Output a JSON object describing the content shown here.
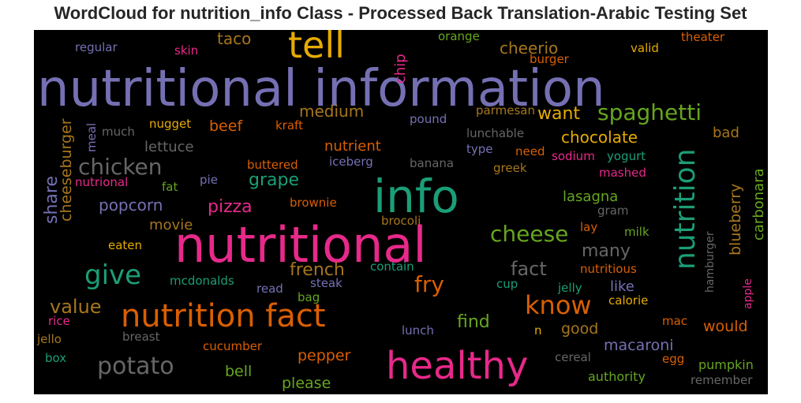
{
  "chart_data": {
    "type": "wordcloud",
    "title": "WordCloud for nutrition_info Class - Processed Back Translation-Arabic Testing Set",
    "background": "#000000",
    "words": [
      {
        "text": "nutritional information",
        "color": "#7570b3",
        "size": 64
      },
      {
        "text": "nutritional",
        "color": "#e7298a",
        "size": 62
      },
      {
        "text": "info",
        "color": "#1b9e77",
        "size": 58
      },
      {
        "text": "healthy",
        "color": "#e7298a",
        "size": 48
      },
      {
        "text": "tell",
        "color": "#e6ab02",
        "size": 46
      },
      {
        "text": "nutrition fact",
        "color": "#d95f02",
        "size": 40
      },
      {
        "text": "nutrition",
        "color": "#1b9e77",
        "size": 36
      },
      {
        "text": "give",
        "color": "#1b9e77",
        "size": 34
      },
      {
        "text": "know",
        "color": "#d95f02",
        "size": 32
      },
      {
        "text": "potato",
        "color": "#666666",
        "size": 30
      },
      {
        "text": "cheese",
        "color": "#66a61e",
        "size": 28
      },
      {
        "text": "fry",
        "color": "#d95f02",
        "size": 28
      },
      {
        "text": "spaghetti",
        "color": "#66a61e",
        "size": 28
      },
      {
        "text": "chicken",
        "color": "#666666",
        "size": 28
      },
      {
        "text": "value",
        "color": "#a6761d",
        "size": 24
      },
      {
        "text": "fact",
        "color": "#666666",
        "size": 24
      },
      {
        "text": "share",
        "color": "#7570b3",
        "size": 22
      },
      {
        "text": "grape",
        "color": "#1b9e77",
        "size": 22
      },
      {
        "text": "pizza",
        "color": "#e7298a",
        "size": 22
      },
      {
        "text": "find",
        "color": "#66a61e",
        "size": 22
      },
      {
        "text": "many",
        "color": "#666666",
        "size": 22
      },
      {
        "text": "french",
        "color": "#a6761d",
        "size": 22
      },
      {
        "text": "want",
        "color": "#e6ab02",
        "size": 22
      },
      {
        "text": "cheerio",
        "color": "#a6761d",
        "size": 20
      },
      {
        "text": "taco",
        "color": "#a6761d",
        "size": 20
      },
      {
        "text": "popcorn",
        "color": "#7570b3",
        "size": 20
      },
      {
        "text": "chocolate",
        "color": "#e6ab02",
        "size": 20
      },
      {
        "text": "medium",
        "color": "#a6761d",
        "size": 20
      },
      {
        "text": "beef",
        "color": "#d95f02",
        "size": 19
      },
      {
        "text": "macaroni",
        "color": "#7570b3",
        "size": 19
      },
      {
        "text": "bell",
        "color": "#66a61e",
        "size": 19
      },
      {
        "text": "pepper",
        "color": "#d95f02",
        "size": 19
      },
      {
        "text": "please",
        "color": "#66a61e",
        "size": 19
      },
      {
        "text": "would",
        "color": "#d95f02",
        "size": 19
      },
      {
        "text": "good",
        "color": "#a6761d",
        "size": 19
      },
      {
        "text": "lasagna",
        "color": "#66a61e",
        "size": 18
      },
      {
        "text": "like",
        "color": "#7570b3",
        "size": 18
      },
      {
        "text": "movie",
        "color": "#a6761d",
        "size": 18
      },
      {
        "text": "nutrient",
        "color": "#d95f02",
        "size": 18
      },
      {
        "text": "lettuce",
        "color": "#666666",
        "size": 18
      },
      {
        "text": "bad",
        "color": "#a6761d",
        "size": 18
      },
      {
        "text": "pumpkin",
        "color": "#66a61e",
        "size": 16
      },
      {
        "text": "authority",
        "color": "#66a61e",
        "size": 16
      },
      {
        "text": "cheeseburger",
        "color": "#a6761d",
        "size": 19
      },
      {
        "text": "chip",
        "color": "#e7298a",
        "size": 18
      },
      {
        "text": "blueberry",
        "color": "#a6761d",
        "size": 19
      },
      {
        "text": "carbonara",
        "color": "#66a61e",
        "size": 18
      },
      {
        "text": "orange",
        "color": "#66a61e",
        "size": 15
      },
      {
        "text": "theater",
        "color": "#d95f02",
        "size": 15
      },
      {
        "text": "regular",
        "color": "#7570b3",
        "size": 15
      },
      {
        "text": "skin",
        "color": "#e7298a",
        "size": 15
      },
      {
        "text": "valid",
        "color": "#e6ab02",
        "size": 15
      },
      {
        "text": "burger",
        "color": "#d95f02",
        "size": 15
      },
      {
        "text": "parmesan",
        "color": "#a6761d",
        "size": 15
      },
      {
        "text": "pound",
        "color": "#7570b3",
        "size": 15
      },
      {
        "text": "lunchable",
        "color": "#666666",
        "size": 15
      },
      {
        "text": "much",
        "color": "#666666",
        "size": 15
      },
      {
        "text": "nugget",
        "color": "#e6ab02",
        "size": 15
      },
      {
        "text": "kraft",
        "color": "#d95f02",
        "size": 15
      },
      {
        "text": "type",
        "color": "#7570b3",
        "size": 15
      },
      {
        "text": "need",
        "color": "#d95f02",
        "size": 15
      },
      {
        "text": "sodium",
        "color": "#e7298a",
        "size": 15
      },
      {
        "text": "yogurt",
        "color": "#1b9e77",
        "size": 15
      },
      {
        "text": "buttered",
        "color": "#d95f02",
        "size": 15
      },
      {
        "text": "iceberg",
        "color": "#7570b3",
        "size": 15
      },
      {
        "text": "banana",
        "color": "#666666",
        "size": 15
      },
      {
        "text": "greek",
        "color": "#a6761d",
        "size": 15
      },
      {
        "text": "mashed",
        "color": "#e7298a",
        "size": 15
      },
      {
        "text": "nutrional",
        "color": "#e7298a",
        "size": 15
      },
      {
        "text": "fat",
        "color": "#66a61e",
        "size": 15
      },
      {
        "text": "pie",
        "color": "#7570b3",
        "size": 15
      },
      {
        "text": "brownie",
        "color": "#d95f02",
        "size": 15
      },
      {
        "text": "gram",
        "color": "#666666",
        "size": 15
      },
      {
        "text": "brocoli",
        "color": "#a6761d",
        "size": 15
      },
      {
        "text": "lay",
        "color": "#d95f02",
        "size": 15
      },
      {
        "text": "eaten",
        "color": "#e6ab02",
        "size": 15
      },
      {
        "text": "milk",
        "color": "#66a61e",
        "size": 15
      },
      {
        "text": "contain",
        "color": "#1b9e77",
        "size": 15
      },
      {
        "text": "nutritious",
        "color": "#d95f02",
        "size": 15
      },
      {
        "text": "mcdonalds",
        "color": "#1b9e77",
        "size": 15
      },
      {
        "text": "read",
        "color": "#7570b3",
        "size": 15
      },
      {
        "text": "steak",
        "color": "#7570b3",
        "size": 15
      },
      {
        "text": "cup",
        "color": "#1b9e77",
        "size": 15
      },
      {
        "text": "jelly",
        "color": "#1b9e77",
        "size": 15
      },
      {
        "text": "bag",
        "color": "#66a61e",
        "size": 15
      },
      {
        "text": "calorie",
        "color": "#e6ab02",
        "size": 15
      },
      {
        "text": "rice",
        "color": "#e7298a",
        "size": 15
      },
      {
        "text": "mac",
        "color": "#d95f02",
        "size": 15
      },
      {
        "text": "jello",
        "color": "#a6761d",
        "size": 15
      },
      {
        "text": "breast",
        "color": "#666666",
        "size": 15
      },
      {
        "text": "lunch",
        "color": "#7570b3",
        "size": 15
      },
      {
        "text": "n",
        "color": "#e6ab02",
        "size": 15
      },
      {
        "text": "cucumber",
        "color": "#d95f02",
        "size": 15
      },
      {
        "text": "box",
        "color": "#1b9e77",
        "size": 15
      },
      {
        "text": "cereal",
        "color": "#666666",
        "size": 15
      },
      {
        "text": "egg",
        "color": "#d95f02",
        "size": 15
      },
      {
        "text": "remember",
        "color": "#666666",
        "size": 15
      },
      {
        "text": "meal",
        "color": "#7570b3",
        "size": 15
      },
      {
        "text": "hamburger",
        "color": "#666666",
        "size": 14
      },
      {
        "text": "apple",
        "color": "#e7298a",
        "size": 14
      }
    ]
  }
}
